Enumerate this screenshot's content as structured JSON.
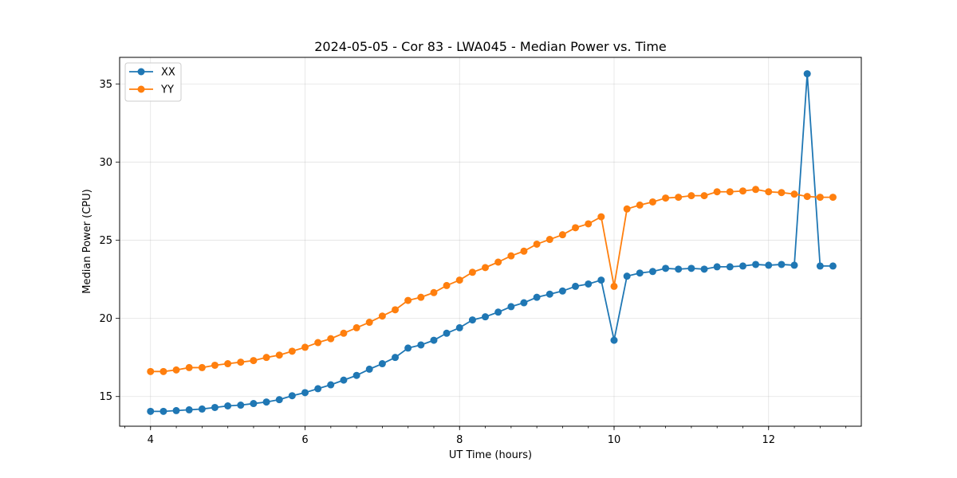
{
  "chart_data": {
    "type": "line",
    "title": "2024-05-05 - Cor 83 - LWA045 - Median Power vs. Time",
    "xlabel": "UT Time (hours)",
    "ylabel": "Median Power (CPU)",
    "xlim": [
      3.6,
      13.2
    ],
    "ylim": [
      13.1,
      36.7
    ],
    "xticks": [
      4,
      6,
      8,
      10,
      12
    ],
    "yticks": [
      15,
      20,
      25,
      30,
      35
    ],
    "grid": true,
    "legend_position": "top-left",
    "x": [
      4.0,
      4.167,
      4.333,
      4.5,
      4.667,
      4.833,
      5.0,
      5.167,
      5.333,
      5.5,
      5.667,
      5.833,
      6.0,
      6.167,
      6.333,
      6.5,
      6.667,
      6.833,
      7.0,
      7.167,
      7.333,
      7.5,
      7.667,
      7.833,
      8.0,
      8.167,
      8.333,
      8.5,
      8.667,
      8.833,
      9.0,
      9.167,
      9.333,
      9.5,
      9.667,
      9.833,
      10.0,
      10.167,
      10.333,
      10.5,
      10.667,
      10.833,
      11.0,
      11.167,
      11.333,
      11.5,
      11.667,
      11.833,
      12.0,
      12.167,
      12.333,
      12.5,
      12.667,
      12.833
    ],
    "series": [
      {
        "name": "XX",
        "color": "#1f77b4",
        "values": [
          14.05,
          14.05,
          14.1,
          14.15,
          14.2,
          14.3,
          14.4,
          14.45,
          14.55,
          14.65,
          14.8,
          15.05,
          15.25,
          15.5,
          15.75,
          16.05,
          16.35,
          16.75,
          17.1,
          17.5,
          18.1,
          18.3,
          18.6,
          19.05,
          19.4,
          19.9,
          20.1,
          20.4,
          20.75,
          21.0,
          21.35,
          21.55,
          21.75,
          22.05,
          22.2,
          22.45,
          18.6,
          22.7,
          22.9,
          23.0,
          23.2,
          23.15,
          23.2,
          23.15,
          23.3,
          23.3,
          23.35,
          23.45,
          23.4,
          23.45,
          23.4,
          35.65,
          23.35,
          23.35
        ]
      },
      {
        "name": "YY",
        "color": "#ff7f0e",
        "values": [
          16.6,
          16.6,
          16.7,
          16.85,
          16.85,
          17.0,
          17.1,
          17.2,
          17.3,
          17.5,
          17.65,
          17.9,
          18.15,
          18.45,
          18.7,
          19.05,
          19.4,
          19.75,
          20.15,
          20.55,
          21.15,
          21.35,
          21.65,
          22.1,
          22.45,
          22.95,
          23.25,
          23.6,
          24.0,
          24.3,
          24.75,
          25.05,
          25.35,
          25.8,
          26.05,
          26.5,
          22.05,
          27.0,
          27.25,
          27.45,
          27.7,
          27.75,
          27.85,
          27.85,
          28.1,
          28.1,
          28.15,
          28.25,
          28.1,
          28.05,
          27.95,
          27.8,
          27.75,
          27.75
        ]
      }
    ]
  }
}
